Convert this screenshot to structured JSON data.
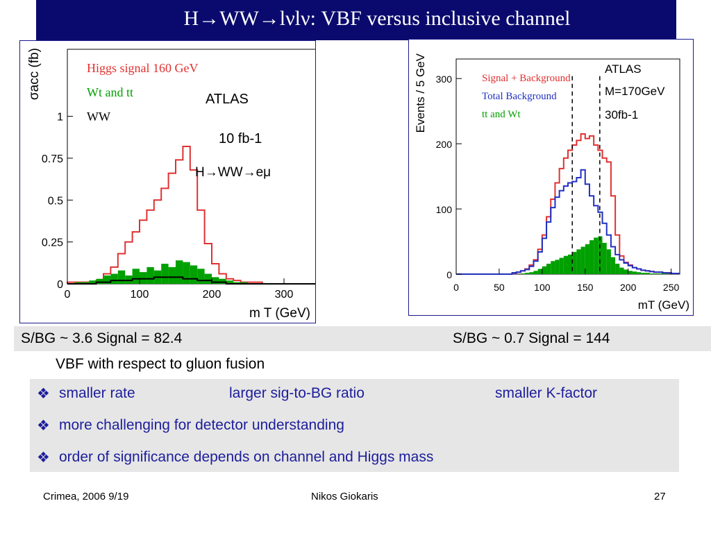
{
  "slide": {
    "title": "H→WW→lνlν: VBF  versus  inclusive channel",
    "left_result": "S/BG ~ 3.6  Signal = 82.4",
    "right_result": "S/BG ~ 0.7  Signal = 144",
    "vbf_line": "VBF with respect to gluon fusion",
    "bullet_symbol": "❖",
    "bullets": [
      [
        "smaller rate",
        "larger sig-to-BG ratio",
        "smaller K-factor"
      ],
      [
        "more challenging for detector understanding"
      ],
      [
        "order of significance depends on channel and Higgs mass"
      ]
    ],
    "footer": {
      "left": "Crimea, 2006 9/19",
      "center": "Nikos Giokaris",
      "right": "27"
    }
  },
  "chart_data": [
    {
      "type": "area",
      "ylabel": "σacc (fb)",
      "xlabel": "m T (GeV)",
      "xlim": [
        0,
        350
      ],
      "ylim": [
        0,
        1.4
      ],
      "xticks": [
        "0",
        "100",
        "200",
        "300"
      ],
      "yticks": [
        "0",
        "0.25",
        "0.5",
        "0.75",
        "1"
      ],
      "annotations": [
        "ATLAS",
        "10 fb-1",
        "H→WW→eμ"
      ],
      "bin_width": 10,
      "bin_start": 0,
      "series": [
        {
          "name": "Higgs signal 160 GeV",
          "color": "#e03030",
          "style": "step",
          "values": [
            0.01,
            0.01,
            0.01,
            0.01,
            0.02,
            0.06,
            0.1,
            0.18,
            0.25,
            0.31,
            0.38,
            0.44,
            0.5,
            0.57,
            0.66,
            0.74,
            0.82,
            0.68,
            0.44,
            0.24,
            0.12,
            0.06,
            0.03,
            0.02,
            0.01,
            0.01,
            0.01,
            0.0,
            0.0,
            0.0,
            0.0,
            0.0,
            0.0,
            0.0,
            0.0
          ]
        },
        {
          "name": "Wt and tt",
          "color": "#00a000",
          "style": "fill",
          "values": [
            0.0,
            0.01,
            0.01,
            0.02,
            0.03,
            0.05,
            0.06,
            0.08,
            0.05,
            0.09,
            0.07,
            0.1,
            0.08,
            0.12,
            0.1,
            0.14,
            0.13,
            0.11,
            0.09,
            0.06,
            0.04,
            0.03,
            0.02,
            0.01,
            0.01,
            0.0,
            0.0,
            0.0,
            0.0,
            0.0,
            0.0,
            0.0,
            0.0,
            0.0,
            0.0
          ]
        },
        {
          "name": "WW",
          "color": "#000000",
          "style": "step",
          "values": [
            0.0,
            0.0,
            0.0,
            0.0,
            0.01,
            0.01,
            0.02,
            0.02,
            0.02,
            0.03,
            0.03,
            0.03,
            0.04,
            0.04,
            0.04,
            0.04,
            0.03,
            0.03,
            0.02,
            0.02,
            0.01,
            0.01,
            0.0,
            0.0,
            0.0,
            0.0,
            0.0,
            0.0,
            0.0,
            0.0,
            0.0,
            0.0,
            0.0,
            0.0,
            0.0
          ]
        }
      ]
    },
    {
      "type": "area",
      "ylabel": "Events / 5 GeV",
      "xlabel": "mT (GeV)",
      "xlim": [
        0,
        260
      ],
      "ylim": [
        0,
        330
      ],
      "xticks": [
        "0",
        "50",
        "100",
        "150",
        "200",
        "250"
      ],
      "yticks": [
        "0",
        "100",
        "200",
        "300"
      ],
      "annotations": [
        "ATLAS",
        "M=170GeV",
        "30fb-1"
      ],
      "cut_lines": [
        135,
        167
      ],
      "bin_width": 5,
      "bin_start": 0,
      "series": [
        {
          "name": "Signal + Background",
          "color": "#e03030",
          "style": "step",
          "values": [
            0,
            0,
            0,
            0,
            0,
            0,
            0,
            0,
            0,
            0,
            0,
            0,
            0,
            2,
            3,
            5,
            8,
            14,
            22,
            38,
            60,
            88,
            115,
            140,
            162,
            178,
            190,
            198,
            205,
            215,
            208,
            212,
            198,
            190,
            178,
            172,
            120,
            60,
            28,
            18,
            14,
            10,
            8,
            6,
            5,
            4,
            3,
            3,
            2,
            2,
            1,
            1
          ]
        },
        {
          "name": "Total Background",
          "color": "#2030c0",
          "style": "step",
          "values": [
            0,
            0,
            0,
            0,
            0,
            0,
            0,
            0,
            0,
            0,
            0,
            0,
            0,
            2,
            3,
            5,
            7,
            12,
            20,
            34,
            55,
            80,
            102,
            118,
            128,
            135,
            140,
            142,
            148,
            160,
            138,
            120,
            105,
            95,
            78,
            60,
            42,
            30,
            22,
            17,
            13,
            10,
            8,
            6,
            5,
            4,
            3,
            3,
            2,
            2,
            1,
            1
          ]
        },
        {
          "name": "tt and Wt",
          "color": "#00a000",
          "style": "fill",
          "values": [
            0,
            0,
            0,
            0,
            0,
            0,
            0,
            0,
            0,
            0,
            0,
            0,
            0,
            0,
            0,
            1,
            2,
            3,
            5,
            8,
            12,
            16,
            20,
            22,
            25,
            28,
            30,
            34,
            38,
            42,
            46,
            52,
            56,
            58,
            48,
            38,
            26,
            16,
            10,
            7,
            5,
            4,
            3,
            2,
            2,
            1,
            1,
            1,
            1,
            0,
            0,
            0
          ]
        }
      ]
    }
  ]
}
